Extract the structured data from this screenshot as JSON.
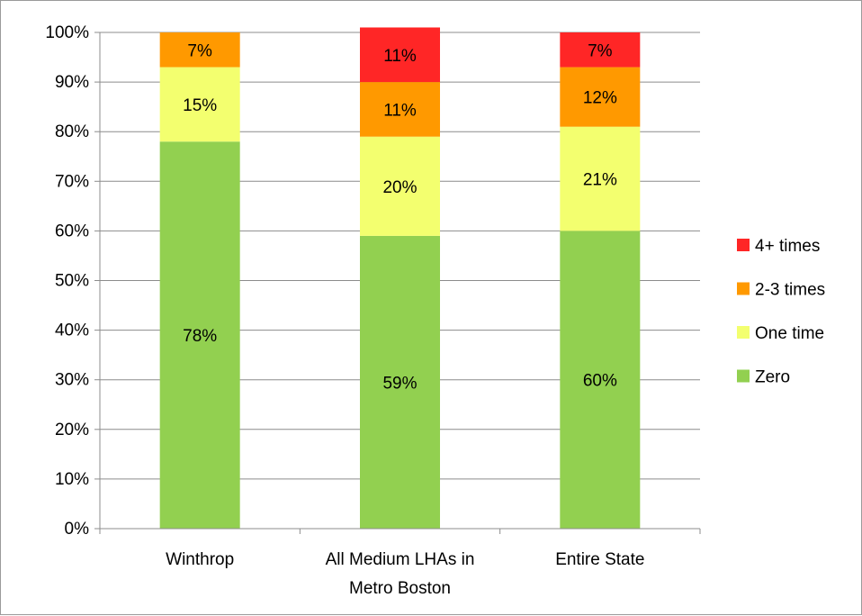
{
  "chart_data": {
    "type": "bar",
    "stacked": true,
    "categories": [
      [
        "Winthrop"
      ],
      [
        "All Medium LHAs in",
        "Metro Boston"
      ],
      [
        "Entire State"
      ]
    ],
    "series": [
      {
        "name": "Zero",
        "values": [
          78,
          59,
          60
        ],
        "labels": [
          "78%",
          "59%",
          "60%"
        ],
        "color": "#92d050"
      },
      {
        "name": "One time",
        "values": [
          15,
          20,
          21
        ],
        "labels": [
          "15%",
          "20%",
          "21%"
        ],
        "color": "#f3ff6f"
      },
      {
        "name": "2-3 times",
        "values": [
          7,
          11,
          12
        ],
        "labels": [
          "7%",
          "11%",
          "12%"
        ],
        "color": "#ff9900"
      },
      {
        "name": "4+ times",
        "values": [
          0,
          11,
          7
        ],
        "labels": [
          "",
          "11%",
          "7%"
        ],
        "color": "#ff2626"
      }
    ],
    "ylim": [
      0,
      100
    ],
    "yticks": [
      "0%",
      "10%",
      "20%",
      "30%",
      "40%",
      "50%",
      "60%",
      "70%",
      "80%",
      "90%",
      "100%"
    ],
    "grid": true,
    "legend": "right",
    "legend_order": [
      "4+ times",
      "2-3 times",
      "One time",
      "Zero"
    ]
  }
}
